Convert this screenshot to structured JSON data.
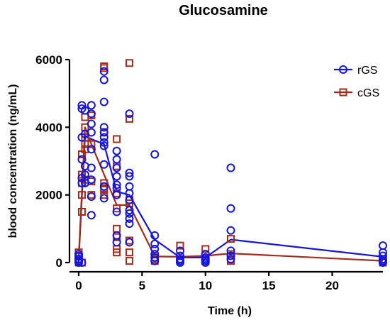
{
  "chart_data": {
    "type": "scatter",
    "title": "Glucosamine",
    "xlabel": "Time (h)",
    "ylabel": "blood concentration (ng/mL)",
    "xlim": [
      0,
      24
    ],
    "ylim": [
      0,
      6000
    ],
    "xticks": [
      0,
      5,
      10,
      15,
      20
    ],
    "yticks": [
      0,
      2000,
      4000,
      6000
    ],
    "grid": false,
    "legend_position": "top-right",
    "series": [
      {
        "name": "rGS",
        "color": "#1414e0",
        "marker": "circle",
        "points": [
          [
            0,
            0
          ],
          [
            0,
            50
          ],
          [
            0,
            100
          ],
          [
            0,
            180
          ],
          [
            0,
            250
          ],
          [
            0.25,
            3700
          ],
          [
            0.25,
            3050
          ],
          [
            0.25,
            2500
          ],
          [
            0.25,
            2350
          ],
          [
            0.25,
            4550
          ],
          [
            0.25,
            4650
          ],
          [
            0.25,
            0
          ],
          [
            0.5,
            3800
          ],
          [
            0.5,
            4500
          ],
          [
            0.5,
            2850
          ],
          [
            0.5,
            2350
          ],
          [
            0.5,
            2600
          ],
          [
            1,
            4650
          ],
          [
            1,
            4400
          ],
          [
            1,
            4100
          ],
          [
            1,
            3850
          ],
          [
            1,
            3350
          ],
          [
            1,
            2800
          ],
          [
            1,
            2450
          ],
          [
            1,
            1950
          ],
          [
            1,
            1400
          ],
          [
            2,
            5650
          ],
          [
            2,
            5400
          ],
          [
            2,
            4750
          ],
          [
            2,
            4000
          ],
          [
            2,
            3850
          ],
          [
            2,
            3700
          ],
          [
            2,
            3550
          ],
          [
            2,
            3450
          ],
          [
            2,
            2900
          ],
          [
            2,
            2250
          ],
          [
            2,
            1900
          ],
          [
            3,
            3300
          ],
          [
            3,
            3050
          ],
          [
            3,
            2800
          ],
          [
            3,
            2550
          ],
          [
            3,
            2300
          ],
          [
            3,
            2200
          ],
          [
            3,
            2000
          ],
          [
            3,
            1500
          ],
          [
            3,
            800
          ],
          [
            3,
            600
          ],
          [
            4,
            4400
          ],
          [
            4,
            2650
          ],
          [
            4,
            2550
          ],
          [
            4,
            2250
          ],
          [
            4,
            2050
          ],
          [
            4,
            1850
          ],
          [
            4,
            1550
          ],
          [
            4,
            1450
          ],
          [
            4,
            1300
          ],
          [
            4,
            1150
          ],
          [
            4,
            600
          ],
          [
            6,
            3200
          ],
          [
            6,
            800
          ],
          [
            6,
            550
          ],
          [
            6,
            400
          ],
          [
            6,
            250
          ],
          [
            6,
            150
          ],
          [
            6,
            50
          ],
          [
            8,
            350
          ],
          [
            8,
            200
          ],
          [
            8,
            100
          ],
          [
            8,
            50
          ],
          [
            8,
            0
          ],
          [
            10,
            250
          ],
          [
            10,
            150
          ],
          [
            10,
            100
          ],
          [
            10,
            50
          ],
          [
            10,
            0
          ],
          [
            12,
            2800
          ],
          [
            12,
            1600
          ],
          [
            12,
            950
          ],
          [
            12,
            350
          ],
          [
            12,
            200
          ],
          [
            12,
            100
          ],
          [
            24,
            500
          ],
          [
            24,
            300
          ],
          [
            24,
            200
          ],
          [
            24,
            100
          ],
          [
            24,
            50
          ],
          [
            24,
            0
          ]
        ],
        "mean": [
          [
            0,
            100
          ],
          [
            0.5,
            3750
          ],
          [
            1,
            3650
          ],
          [
            2,
            3500
          ],
          [
            3,
            2100
          ],
          [
            4,
            2000
          ],
          [
            6,
            680
          ],
          [
            8,
            150
          ],
          [
            10,
            150
          ],
          [
            12,
            680
          ],
          [
            24,
            170
          ]
        ]
      },
      {
        "name": "cGS",
        "color": "#a82a18",
        "marker": "square",
        "points": [
          [
            0,
            0
          ],
          [
            0,
            100
          ],
          [
            0,
            200
          ],
          [
            0,
            300
          ],
          [
            0.25,
            3200
          ],
          [
            0.25,
            2600
          ],
          [
            0.25,
            2350
          ],
          [
            0.25,
            2000
          ],
          [
            0.25,
            1500
          ],
          [
            0.25,
            0
          ],
          [
            0.5,
            4300
          ],
          [
            0.5,
            4000
          ],
          [
            0.5,
            3700
          ],
          [
            0.5,
            3500
          ],
          [
            0.5,
            3350
          ],
          [
            0.5,
            2450
          ],
          [
            1,
            4350
          ],
          [
            1,
            3500
          ],
          [
            1,
            2400
          ],
          [
            1,
            2000
          ],
          [
            2,
            5800
          ],
          [
            2,
            5750
          ],
          [
            2,
            3850
          ],
          [
            2,
            2350
          ],
          [
            2,
            2200
          ],
          [
            2,
            2150
          ],
          [
            2,
            2000
          ],
          [
            3,
            3650
          ],
          [
            3,
            2850
          ],
          [
            3,
            2050
          ],
          [
            3,
            1600
          ],
          [
            3,
            1000
          ],
          [
            3,
            750
          ],
          [
            3,
            400
          ],
          [
            3,
            300
          ],
          [
            4,
            5900
          ],
          [
            4,
            4250
          ],
          [
            4,
            1850
          ],
          [
            4,
            1750
          ],
          [
            4,
            650
          ],
          [
            4,
            300
          ],
          [
            4,
            50
          ],
          [
            6,
            150
          ],
          [
            6,
            100
          ],
          [
            6,
            50
          ],
          [
            8,
            500
          ],
          [
            8,
            100
          ],
          [
            8,
            50
          ],
          [
            10,
            400
          ],
          [
            10,
            50
          ],
          [
            12,
            700
          ],
          [
            12,
            250
          ],
          [
            12,
            100
          ],
          [
            12,
            50
          ],
          [
            24,
            50
          ],
          [
            24,
            0
          ]
        ],
        "mean": [
          [
            0,
            150
          ],
          [
            0.5,
            4000
          ],
          [
            1,
            3500
          ],
          [
            2,
            2600
          ],
          [
            3,
            1700
          ],
          [
            4,
            1700
          ],
          [
            6,
            180
          ],
          [
            8,
            170
          ],
          [
            10,
            200
          ],
          [
            12,
            270
          ],
          [
            24,
            50
          ]
        ]
      }
    ]
  }
}
